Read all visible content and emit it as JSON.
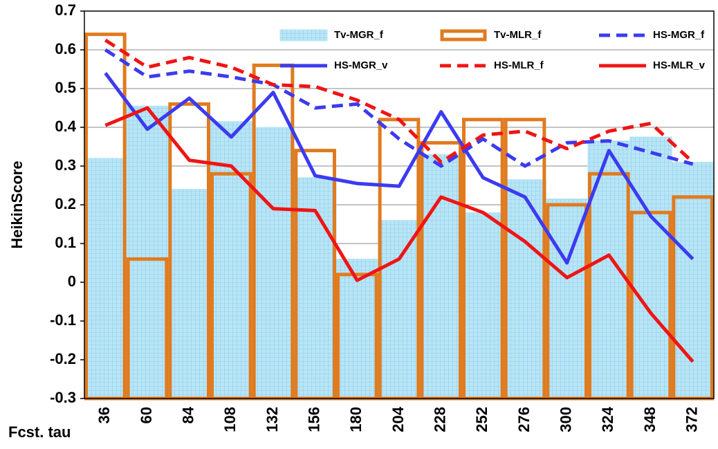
{
  "chart_data": {
    "type": "bar",
    "y_label": "HeikinScore",
    "x_label": "Fcst. tau",
    "categories": [
      "36",
      "60",
      "84",
      "108",
      "132",
      "156",
      "180",
      "204",
      "228",
      "252",
      "276",
      "300",
      "324",
      "348",
      "372"
    ],
    "series": [
      {
        "name": "Tv-MGR_f",
        "type": "bar",
        "outline": false,
        "color": "#b9e5f6",
        "values": [
          0.32,
          0.455,
          0.24,
          0.415,
          0.4,
          0.27,
          0.06,
          0.16,
          0.33,
          0.18,
          0.265,
          0.215,
          0.365,
          0.375,
          0.31
        ]
      },
      {
        "name": "Tv-MLR_f",
        "type": "bar",
        "outline": true,
        "color": "#e07b1f",
        "values": [
          0.64,
          0.06,
          0.46,
          0.28,
          0.56,
          0.34,
          0.02,
          0.42,
          0.36,
          0.42,
          0.42,
          0.2,
          0.28,
          0.18,
          0.22
        ]
      },
      {
        "name": "HS-MGR_f",
        "type": "line",
        "dashed": true,
        "color": "#3b3bf0",
        "values": [
          0.6,
          0.53,
          0.545,
          0.53,
          0.51,
          0.45,
          0.46,
          0.37,
          0.3,
          0.37,
          0.3,
          0.36,
          0.365,
          0.335,
          0.305
        ]
      },
      {
        "name": "HS-MGR_v",
        "type": "line",
        "dashed": false,
        "color": "#3b3bf0",
        "values": [
          0.54,
          0.395,
          0.475,
          0.375,
          0.49,
          0.275,
          0.255,
          0.248,
          0.44,
          0.27,
          0.22,
          0.05,
          0.34,
          0.17,
          0.06
        ]
      },
      {
        "name": "HS-MLR_f",
        "type": "line",
        "dashed": true,
        "color": "#f01414",
        "values": [
          0.625,
          0.555,
          0.58,
          0.555,
          0.51,
          0.505,
          0.47,
          0.42,
          0.31,
          0.38,
          0.39,
          0.345,
          0.39,
          0.41,
          0.31
        ]
      },
      {
        "name": "HS-MLR_v",
        "type": "line",
        "dashed": false,
        "color": "#f01414",
        "values": [
          0.405,
          0.45,
          0.315,
          0.3,
          0.19,
          0.185,
          0.005,
          0.06,
          0.22,
          0.18,
          0.105,
          0.012,
          0.07,
          -0.08,
          -0.205
        ]
      }
    ],
    "ylim": [
      -0.3,
      0.7
    ],
    "yticks": [
      -0.3,
      -0.2,
      -0.1,
      0,
      0.1,
      0.2,
      0.3,
      0.4,
      0.5,
      0.6,
      0.7
    ],
    "grid": true
  }
}
